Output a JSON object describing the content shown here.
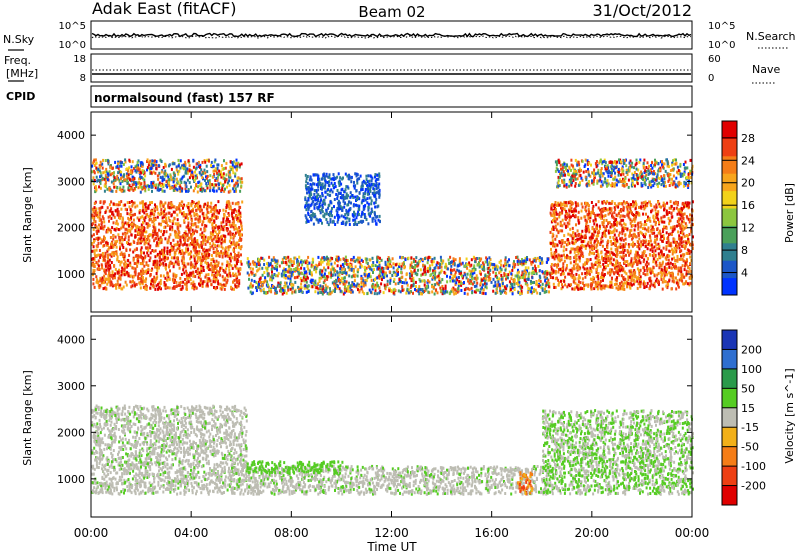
{
  "header": {
    "radar": "Adak East (fitACF)",
    "beam": "Beam 02",
    "date": "31/Oct/2012"
  },
  "noise_panel": {
    "left_label": "N.Sky",
    "right_label": "N.Search",
    "left_ticks": [
      "10^5",
      "10^0"
    ],
    "right_ticks": [
      "10^5",
      "10^0"
    ]
  },
  "freq_panel": {
    "left_label_1": "Freq.",
    "left_label_2": "[MHz]",
    "right_label": "Nave",
    "left_ticks": [
      "18",
      "8"
    ],
    "right_ticks": [
      "60",
      "0"
    ]
  },
  "cpid_panel": {
    "label": "CPID",
    "text": "normalsound (fast) 157 RF"
  },
  "chart_data": [
    {
      "type": "heatmap",
      "quantity": "Power",
      "ylabel": "Slant Range [km]",
      "ylim": [
        180,
        4500
      ],
      "yticks": [
        1000,
        2000,
        3000,
        4000
      ],
      "colorbar_label": "Power [dB]",
      "colorbar_ticks": [
        4,
        8,
        12,
        16,
        20,
        24,
        28
      ],
      "colorbar_range": [
        0,
        31
      ],
      "colorbar_colors": [
        "#0033ff",
        "#1c57c8",
        "#2f7f8f",
        "#4aa05a",
        "#8cc63f",
        "#f2d21b",
        "#f8a51c",
        "#f57d17",
        "#ee3f13",
        "#e00000"
      ],
      "regions": [
        {
          "t0": 0.0,
          "t1": 6.0,
          "r0": 700,
          "r1": 2600,
          "level": "high"
        },
        {
          "t0": 6.2,
          "t1": 18.3,
          "r0": 600,
          "r1": 1400,
          "level": "mixed"
        },
        {
          "t0": 8.5,
          "t1": 11.5,
          "r0": 2100,
          "r1": 3200,
          "level": "low"
        },
        {
          "t0": 18.3,
          "t1": 24.0,
          "r0": 700,
          "r1": 2600,
          "level": "high"
        },
        {
          "t0": 0.0,
          "t1": 6.0,
          "r0": 2800,
          "r1": 3500,
          "level": "mixed"
        },
        {
          "t0": 18.5,
          "t1": 24.0,
          "r0": 2900,
          "r1": 3500,
          "level": "mixed"
        }
      ]
    },
    {
      "type": "heatmap",
      "quantity": "Velocity",
      "ylabel": "Slant Range [km]",
      "ylim": [
        180,
        4500
      ],
      "yticks": [
        1000,
        2000,
        3000,
        4000
      ],
      "colorbar_label": "Velocity [m s^-1]",
      "colorbar_ticks": [
        "200",
        "100",
        "50",
        "15",
        "-15",
        "-50",
        "-100",
        "-200"
      ],
      "colorbar_colors": [
        "#1a35b5",
        "#2f6fd0",
        "#2a9a4a",
        "#55cc22",
        "#bdbdb3",
        "#f2b019",
        "#f57d17",
        "#ee3f13",
        "#e00000"
      ],
      "regions": [
        {
          "t0": 0.0,
          "t1": 6.2,
          "r0": 700,
          "r1": 2600,
          "level": "ground"
        },
        {
          "t0": 6.2,
          "t1": 18.2,
          "r0": 700,
          "r1": 1300,
          "level": "ground"
        },
        {
          "t0": 6.2,
          "t1": 10.0,
          "r0": 1150,
          "r1": 1400,
          "level": "pos"
        },
        {
          "t0": 18.0,
          "t1": 24.0,
          "r0": 700,
          "r1": 2500,
          "level": "mixed"
        },
        {
          "t0": 17.0,
          "t1": 17.6,
          "r0": 700,
          "r1": 1200,
          "level": "neg"
        }
      ]
    }
  ],
  "time_axis": {
    "xlabel": "Time UT",
    "xlim": [
      0,
      24
    ],
    "ticks": [
      "00:00",
      "04:00",
      "08:00",
      "12:00",
      "16:00",
      "20:00",
      "00:00"
    ]
  }
}
